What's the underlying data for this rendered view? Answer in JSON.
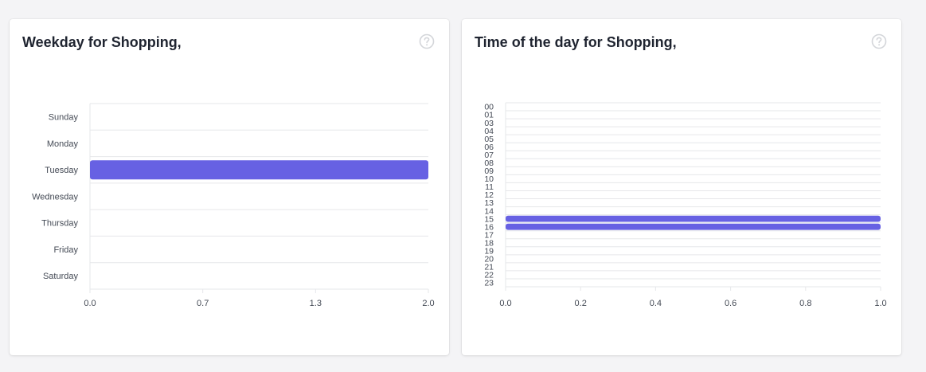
{
  "colors": {
    "bar": "#6761e3",
    "grid": "#e6e7ea",
    "text": "#444a55",
    "icon": "#d4d6da"
  },
  "icons": {
    "help": "question-circle-icon"
  },
  "cards": [
    {
      "title": "Weekday for Shopping,"
    },
    {
      "title": "Time of the day for Shopping,"
    }
  ],
  "chart_data": [
    {
      "type": "bar",
      "orientation": "horizontal",
      "title": "Weekday for Shopping,",
      "categories": [
        "Sunday",
        "Monday",
        "Tuesday",
        "Wednesday",
        "Thursday",
        "Friday",
        "Saturday"
      ],
      "values": [
        0,
        0,
        2,
        0,
        0,
        0,
        0
      ],
      "x_ticks": [
        "0.0",
        "0.7",
        "1.3",
        "2.0"
      ],
      "xlim": [
        0,
        2
      ],
      "xlabel": "",
      "ylabel": "",
      "grid": true
    },
    {
      "type": "bar",
      "orientation": "horizontal",
      "title": "Time of the day for Shopping,",
      "categories": [
        "00",
        "01",
        "03",
        "04",
        "05",
        "06",
        "07",
        "08",
        "09",
        "10",
        "11",
        "12",
        "13",
        "14",
        "15",
        "16",
        "17",
        "18",
        "19",
        "20",
        "21",
        "22",
        "23"
      ],
      "values": [
        0,
        0,
        0,
        0,
        0,
        0,
        0,
        0,
        0,
        0,
        0,
        0,
        0,
        0,
        1,
        1,
        0,
        0,
        0,
        0,
        0,
        0,
        0
      ],
      "x_ticks": [
        "0.0",
        "0.2",
        "0.4",
        "0.6",
        "0.8",
        "1.0"
      ],
      "xlim": [
        0,
        1
      ],
      "xlabel": "",
      "ylabel": "",
      "grid": true
    }
  ]
}
